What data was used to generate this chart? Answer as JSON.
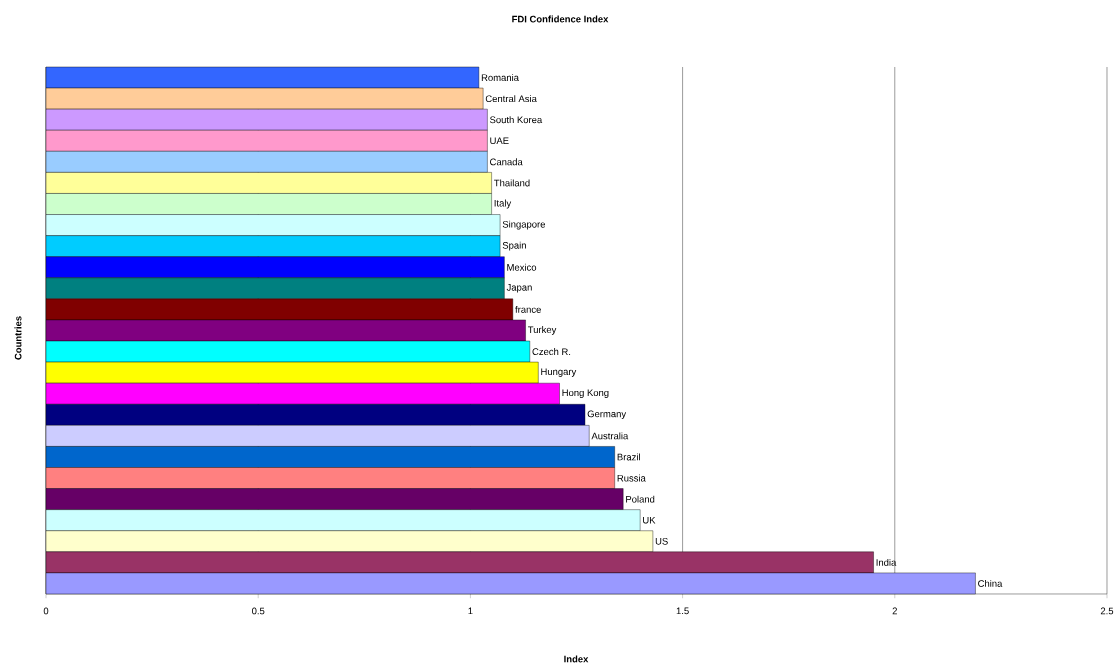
{
  "chart_data": {
    "type": "bar",
    "orientation": "horizontal",
    "title": "FDI Confidence Index",
    "xlabel": "Index",
    "ylabel": "Countries",
    "categories": [
      "Romania",
      "Central Asia",
      "South Korea",
      "UAE",
      "Canada",
      "Thailand",
      "Italy",
      "Singapore",
      "Spain",
      "Mexico",
      "Japan",
      "france",
      "Turkey",
      "Czech R.",
      "Hungary",
      "Hong Kong",
      "Germany",
      "Australia",
      "Brazil",
      "Russia",
      "Poland",
      "UK",
      "US",
      "India",
      "China"
    ],
    "values": [
      1.02,
      1.03,
      1.04,
      1.04,
      1.04,
      1.05,
      1.05,
      1.07,
      1.07,
      1.08,
      1.08,
      1.1,
      1.13,
      1.14,
      1.16,
      1.21,
      1.27,
      1.28,
      1.34,
      1.34,
      1.36,
      1.4,
      1.43,
      1.95,
      2.19
    ],
    "colors": [
      "#3366ff",
      "#ffcc99",
      "#cc99ff",
      "#ff99cc",
      "#99ccff",
      "#ffff99",
      "#ccffcc",
      "#ccffff",
      "#00ccff",
      "#0000ff",
      "#008080",
      "#800000",
      "#800080",
      "#00ffff",
      "#ffff00",
      "#ff00ff",
      "#000080",
      "#ccccff",
      "#0066cc",
      "#ff8080",
      "#660066",
      "#ccffff",
      "#ffffcc",
      "#993366",
      "#9999ff"
    ],
    "xlim": [
      0,
      2.5
    ],
    "xticks": [
      0,
      0.5,
      1,
      1.5,
      2,
      2.5
    ],
    "grid": "x",
    "tick_labels": "x"
  }
}
